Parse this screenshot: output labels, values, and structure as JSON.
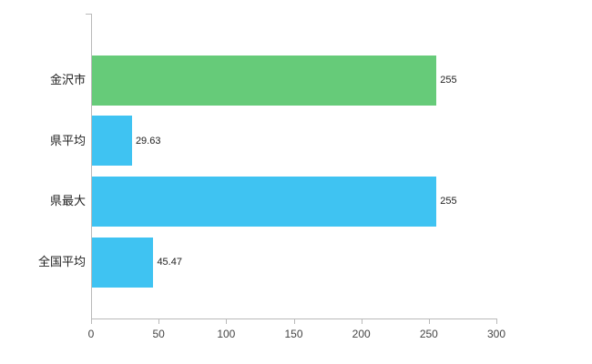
{
  "chart_data": {
    "type": "bar",
    "orientation": "horizontal",
    "title": "",
    "categories": [
      "金沢市",
      "県平均",
      "県最大",
      "全国平均"
    ],
    "values": [
      255,
      29.63,
      255,
      45.47
    ],
    "value_labels": [
      "255",
      "29.63",
      "255",
      "45.47"
    ],
    "bar_colors": [
      "#66cb79",
      "#3fc3f2",
      "#3fc3f2",
      "#3fc3f2"
    ],
    "xlim": [
      0,
      300
    ],
    "x_ticks": [
      "0",
      "50",
      "100",
      "150",
      "200",
      "250",
      "300"
    ],
    "grid": false,
    "legend": false,
    "background": "#ffffff",
    "axis_color": "#b9b9b9",
    "label_color": "#222222"
  }
}
